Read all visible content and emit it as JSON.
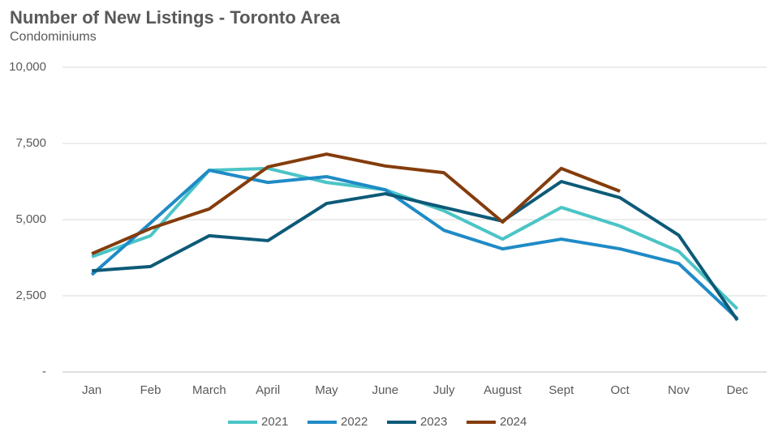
{
  "chart_data": {
    "type": "line",
    "title": "Number of New Listings - Toronto Area",
    "subtitle": "Condominiums",
    "categories": [
      "Jan",
      "Feb",
      "March",
      "April",
      "May",
      "June",
      "July",
      "August",
      "Sept",
      "Oct",
      "Nov",
      "Dec"
    ],
    "series": [
      {
        "name": "2021",
        "color": "#4bc4c6",
        "values": [
          3780,
          4470,
          6620,
          6680,
          6220,
          5980,
          5290,
          4360,
          5400,
          4790,
          3960,
          2070
        ]
      },
      {
        "name": "2022",
        "color": "#1f8bc6",
        "values": [
          3190,
          4890,
          6620,
          6220,
          6410,
          5980,
          4650,
          4040,
          4360,
          4040,
          3560,
          1750
        ]
      },
      {
        "name": "2023",
        "color": "#0d5a78",
        "values": [
          3320,
          3460,
          4470,
          4310,
          5530,
          5850,
          5400,
          4950,
          6250,
          5720,
          4490,
          1700
        ]
      },
      {
        "name": "2024",
        "color": "#843c0c",
        "values": [
          3880,
          4710,
          5350,
          6730,
          7150,
          6760,
          6540,
          4920,
          6680,
          5930,
          null,
          null
        ]
      }
    ],
    "ylim": [
      0,
      10000
    ],
    "yticks": [
      {
        "value": 0,
        "label": "-"
      },
      {
        "value": 2500,
        "label": "2,500"
      },
      {
        "value": 5000,
        "label": "5,000"
      },
      {
        "value": 7500,
        "label": "7,500"
      },
      {
        "value": 10000,
        "label": "10,000"
      }
    ],
    "grid": true,
    "legend": "bottom"
  }
}
